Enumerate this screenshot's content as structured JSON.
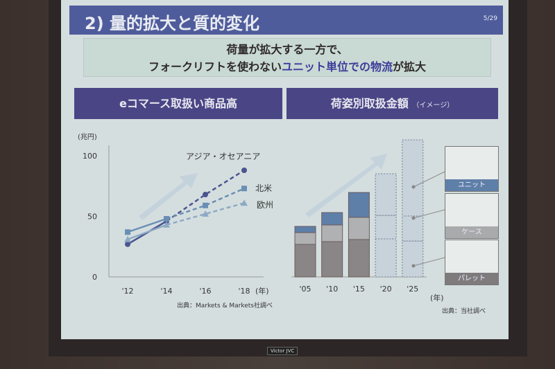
{
  "slide": {
    "title": "2) 量的拡大と質的変化",
    "page": "5/29",
    "message_line1": "荷量が拡大する一方で、",
    "message_line2_pre": "フォークリフトを使わない",
    "message_line2_highlight": "ユニット単位での物流",
    "message_line2_post": "が拡大",
    "left_heading": "eコマース取扱い商品高",
    "right_heading": "荷姿別取扱金額",
    "right_heading_note": "（イメージ）",
    "left_source": "出典：Markets & Markets社調べ",
    "right_source": "出典：当社調べ",
    "logo": "Victor JVC",
    "colors": {
      "header": "#4f5c9c",
      "subheader": "#4a4585",
      "highlight": "#3e3c9a"
    }
  },
  "chart_data": [
    {
      "type": "line",
      "ylabel": "(兆円)",
      "xlabel": "(年)",
      "categories": [
        "'12",
        "'14",
        "'16",
        "'18"
      ],
      "yticks": [
        "0",
        "50",
        "100"
      ],
      "ylim": [
        0,
        100
      ],
      "grid": false,
      "note": "'14以降は破線",
      "series": [
        {
          "name": "アジア・オセアニア",
          "values": [
            27,
            46,
            68,
            88
          ],
          "marker": "circle",
          "color": "#4a5590"
        },
        {
          "name": "北米",
          "values": [
            37,
            48,
            59,
            73
          ],
          "marker": "square",
          "color": "#6a8fb3"
        },
        {
          "name": "欧州",
          "values": [
            31,
            43,
            52,
            61
          ],
          "marker": "triangle",
          "color": "#8eaac4"
        }
      ]
    },
    {
      "type": "bar",
      "stacked": true,
      "xlabel": "(年)",
      "categories": [
        "'05",
        "'10",
        "'15",
        "'20",
        "'25"
      ],
      "projected": [
        "'20",
        "'25"
      ],
      "series": [
        {
          "name": "パレット",
          "values": [
            47,
            51,
            54,
            55,
            52
          ],
          "color": "#8a8687"
        },
        {
          "name": "ケース",
          "values": [
            17,
            24,
            32,
            34,
            36
          ],
          "color": "#b0b1b3"
        },
        {
          "name": "ユニット",
          "values": [
            9,
            18,
            36,
            60,
            110
          ],
          "color": "#5e7fa8"
        }
      ]
    }
  ]
}
